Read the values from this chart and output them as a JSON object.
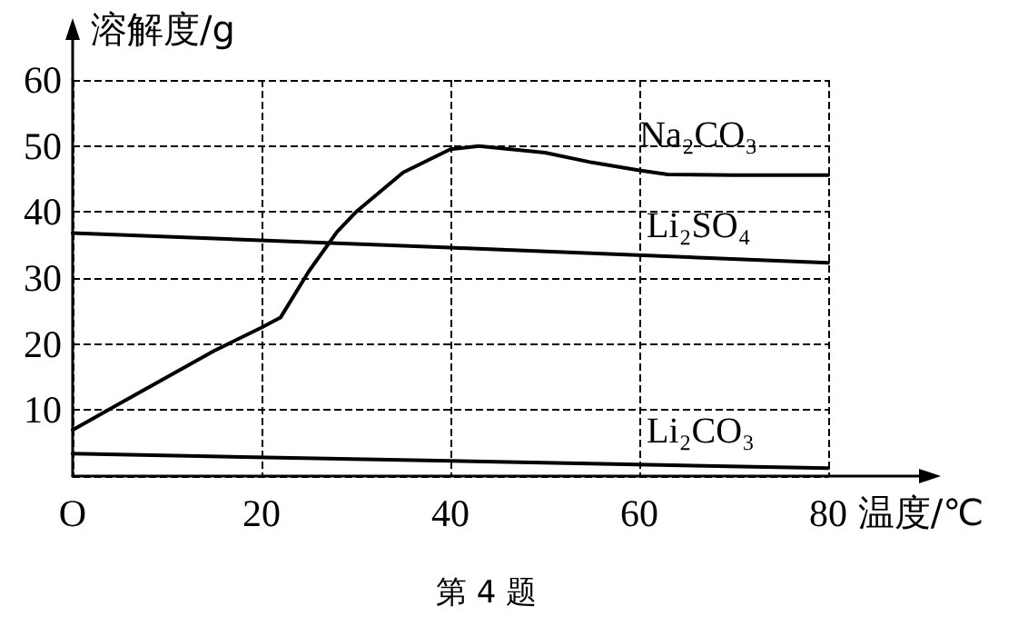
{
  "chart_data": {
    "type": "line",
    "xlabel": "温度/℃",
    "ylabel": "溶解度/g",
    "annotations": [
      "第 4 题"
    ],
    "xlim": [
      0,
      80
    ],
    "xticks": [
      {
        "value": 0,
        "label": "O"
      },
      20,
      40,
      60,
      80
    ],
    "ylim": [
      0,
      60
    ],
    "yticks": [
      {
        "value": 0,
        "label": null
      },
      10,
      20,
      30,
      40,
      50,
      60
    ],
    "grid": true,
    "legend": false,
    "marker": "none",
    "line_style": "solid",
    "series": [
      {
        "name": "Na₂CO₃",
        "color": "#000000",
        "x": [
          0,
          5,
          10,
          15,
          20,
          22,
          25,
          28,
          30,
          35,
          40,
          43,
          50,
          55,
          60,
          63,
          70,
          80
        ],
        "values": [
          7,
          11,
          15,
          19,
          22.5,
          24,
          31,
          37,
          40,
          46,
          49.5,
          50,
          49,
          47.5,
          46.3,
          45.7,
          45.6,
          45.6
        ]
      },
      {
        "name": "Li₂SO₄",
        "color": "#000000",
        "x": [
          0,
          40,
          80
        ],
        "values": [
          36.8,
          34.6,
          32.3
        ]
      },
      {
        "name": "Li₂CO₃",
        "color": "#000000",
        "x": [
          0,
          40,
          80
        ],
        "values": [
          3.4,
          2.3,
          1.2
        ]
      }
    ]
  }
}
